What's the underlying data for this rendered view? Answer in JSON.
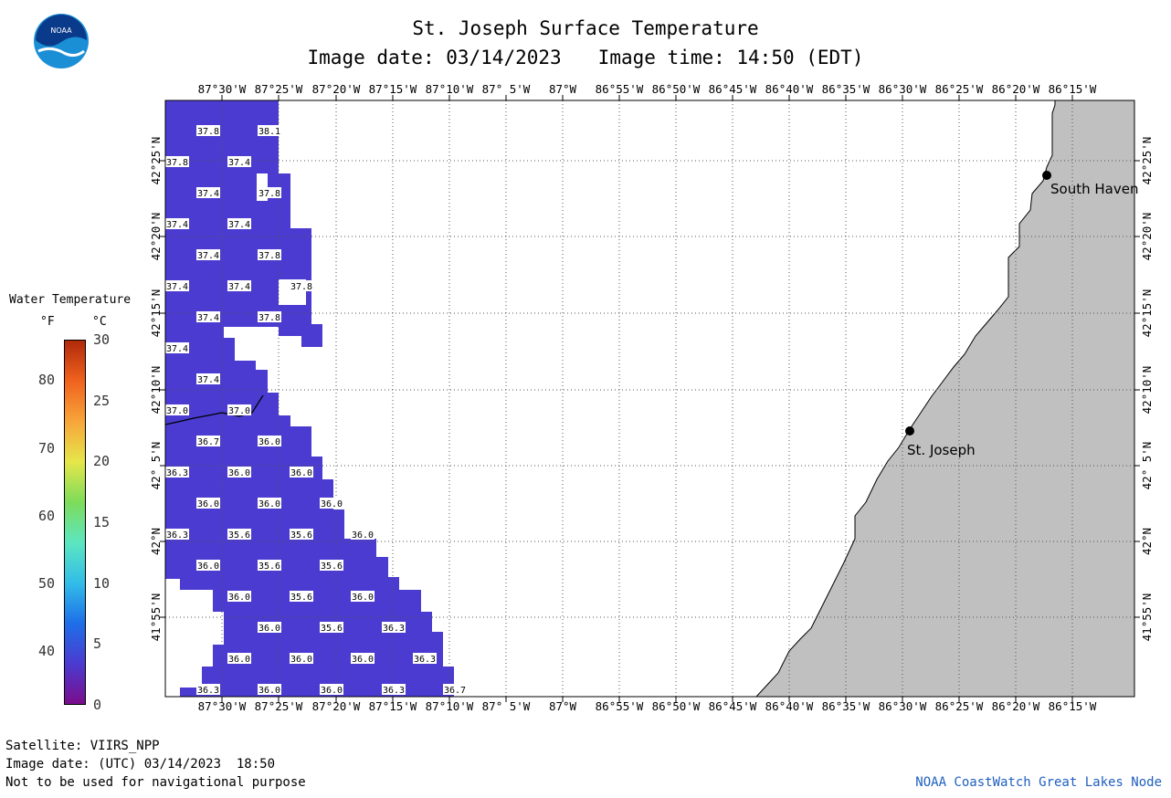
{
  "header": {
    "title": "St. Joseph Surface Temperature",
    "image_date_label": "Image date: 03/14/2023",
    "image_time_label": "Image time: 14:50 (EDT)"
  },
  "logo": {
    "text": "NOAA",
    "icon": "noaa-logo-icon"
  },
  "legend": {
    "title": "Water Temperature",
    "unit_f": "°F",
    "unit_c": "°C",
    "fahrenheit_ticks": [
      40,
      50,
      60,
      70,
      80
    ],
    "celsius_ticks": [
      0,
      5,
      10,
      15,
      20,
      25,
      30
    ],
    "colors": [
      "#7a0d8c",
      "#4b3bd0",
      "#1e6fe8",
      "#32bde8",
      "#5ce6c0",
      "#7ddc5a",
      "#e6e64a",
      "#f7a53a",
      "#f0621e",
      "#b02a0a"
    ]
  },
  "map": {
    "lon_labels": [
      "87°30'W",
      "87°25'W",
      "87°20'W",
      "87°15'W",
      "87°10'W",
      "87° 5'W",
      "87°W",
      "86°55'W",
      "86°50'W",
      "86°45'W",
      "86°40'W",
      "86°35'W",
      "86°30'W",
      "86°25'W",
      "86°20'W",
      "86°15'W"
    ],
    "lat_labels": [
      "42°25'N",
      "42°20'N",
      "42°15'N",
      "42°10'N",
      "42° 5'N",
      "42°N",
      "41°55'N"
    ],
    "cities": [
      {
        "name": "South Haven"
      },
      {
        "name": "St. Joseph"
      }
    ],
    "water_color": "#4b3bd0",
    "land_color": "#c0c0c0",
    "temp_labels": [
      "37.8",
      "38.1",
      "37.8",
      "37.4",
      "37.4",
      "37.8",
      "37.4",
      "37.4",
      "37.4",
      "37.8",
      "37.4",
      "37.4",
      "37.8",
      "37.4",
      "37.8",
      "37.4",
      "37.4",
      "37.0",
      "37.0",
      "36.7",
      "36.0",
      "36.3",
      "36.0",
      "36.0",
      "36.0",
      "36.0",
      "36.0",
      "36.3",
      "35.6",
      "35.6",
      "36.0",
      "36.0",
      "35.6",
      "35.6",
      "36.0",
      "35.6",
      "36.0",
      "36.0",
      "35.6",
      "36.3",
      "36.0",
      "36.0",
      "36.0",
      "36.3",
      "36.3",
      "36.0",
      "36.0",
      "36.3",
      "36.7"
    ]
  },
  "footer": {
    "satellite": "Satellite: VIIRS_NPP",
    "utc_date": "Image date: (UTC) 03/14/2023  18:50",
    "disclaimer": "Not to be used for navigational purpose",
    "credit": "NOAA CoastWatch Great Lakes Node"
  }
}
